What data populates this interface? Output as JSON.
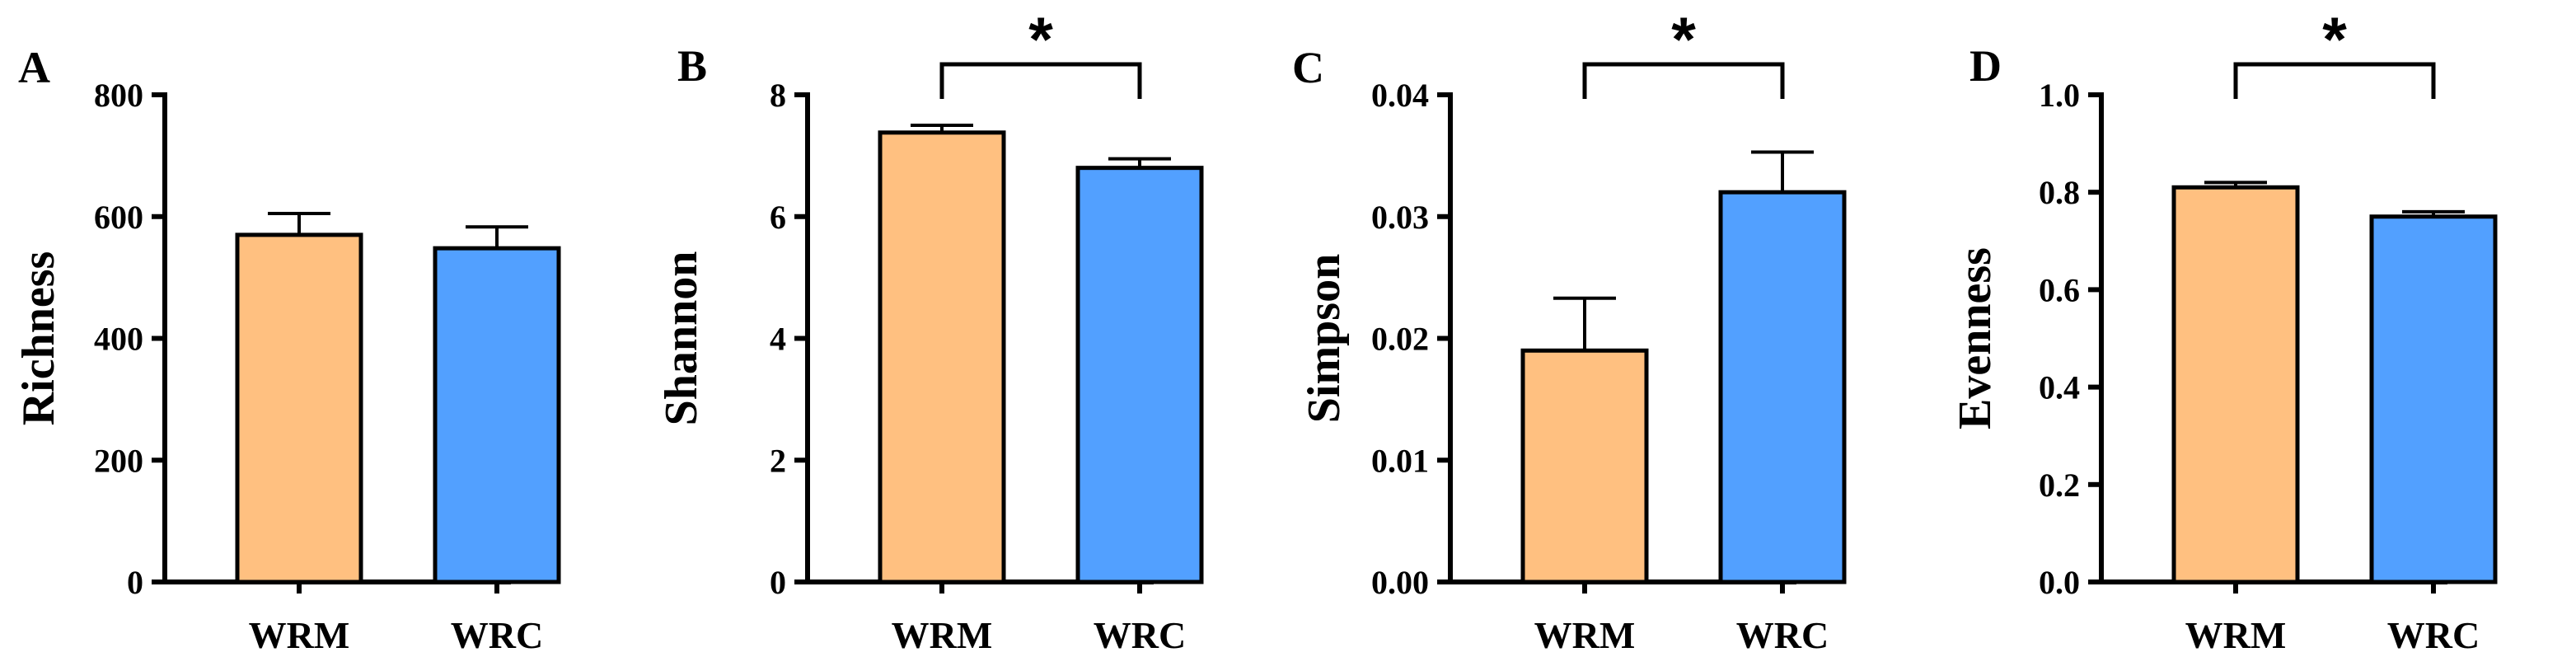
{
  "colors": {
    "WRM": "#FFC080",
    "WRC": "#52A0FF"
  },
  "chart_data": [
    {
      "type": "bar",
      "panel": "A",
      "ylabel": "Richness",
      "categories": [
        "WRM",
        "WRC"
      ],
      "values": [
        570,
        548
      ],
      "errors": [
        35,
        35
      ],
      "ylim": [
        0,
        800
      ],
      "yticks": [
        "0",
        "200",
        "400",
        "600",
        "800"
      ],
      "significance": ""
    },
    {
      "type": "bar",
      "panel": "B",
      "ylabel": "Shannon",
      "categories": [
        "WRM",
        "WRC"
      ],
      "values": [
        7.38,
        6.8
      ],
      "errors": [
        0.12,
        0.15
      ],
      "ylim": [
        0,
        8
      ],
      "yticks": [
        "0",
        "2",
        "4",
        "6",
        "8"
      ],
      "significance": "*"
    },
    {
      "type": "bar",
      "panel": "C",
      "ylabel": "Simpson",
      "categories": [
        "WRM",
        "WRC"
      ],
      "values": [
        0.019,
        0.032
      ],
      "errors": [
        0.0043,
        0.0033
      ],
      "ylim": [
        0,
        0.04
      ],
      "yticks": [
        "0.00",
        "0.01",
        "0.02",
        "0.03",
        "0.04"
      ],
      "significance": "*"
    },
    {
      "type": "bar",
      "panel": "D",
      "ylabel": "Evenness",
      "categories": [
        "WRM",
        "WRC"
      ],
      "values": [
        0.81,
        0.75
      ],
      "errors": [
        0.01,
        0.01
      ],
      "ylim": [
        0,
        1
      ],
      "yticks": [
        "0.0",
        "0.2",
        "0.4",
        "0.6",
        "0.8",
        "1.0"
      ],
      "significance": "*"
    }
  ]
}
